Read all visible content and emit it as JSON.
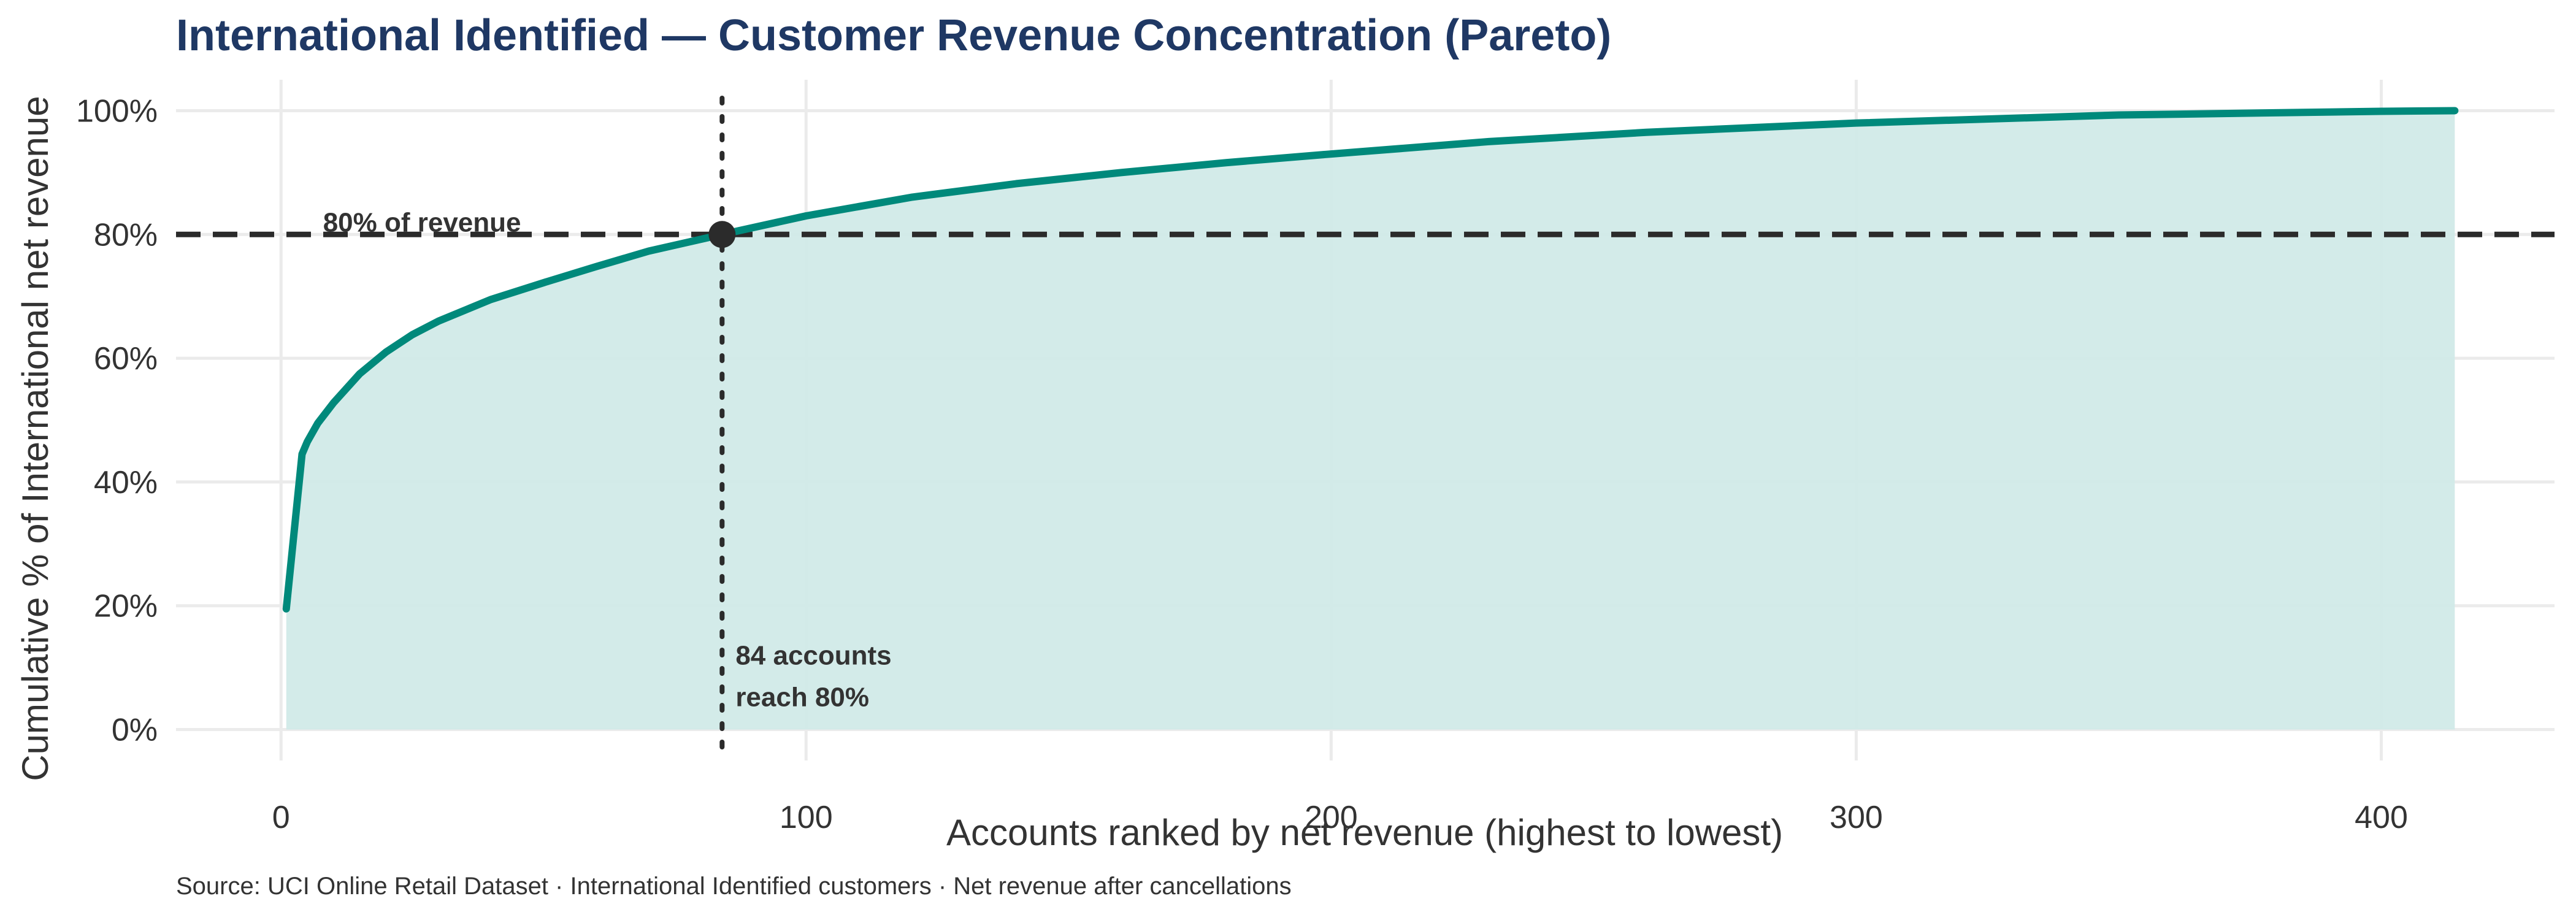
{
  "chart_data": {
    "type": "area",
    "title": "International Identified — Customer Revenue Concentration (Pareto)",
    "xlabel": "Accounts ranked by net revenue (highest to lowest)",
    "ylabel": "Cumulative % of International net revenue",
    "caption": "Source: UCI Online Retail Dataset · International Identified customers · Net revenue after cancellations",
    "xlim": [
      -20,
      433
    ],
    "ylim": [
      -5,
      105
    ],
    "x_ticks": [
      0,
      100,
      200,
      300,
      400
    ],
    "y_ticks": [
      0,
      20,
      40,
      60,
      80,
      100
    ],
    "y_tick_format": "{v}%",
    "grid": true,
    "series": [
      {
        "x": [
          1,
          4,
          5,
          7,
          10,
          15,
          20,
          25,
          30,
          40,
          50,
          60,
          70,
          84,
          100,
          120,
          140,
          160,
          180,
          200,
          230,
          260,
          300,
          350,
          400,
          414
        ],
        "y": [
          19.5,
          44.5,
          46.5,
          49.5,
          52.8,
          57.5,
          61,
          63.8,
          66,
          69.5,
          72.2,
          74.8,
          77.3,
          80,
          83,
          86,
          88.2,
          90,
          91.6,
          93,
          95,
          96.5,
          98,
          99.3,
          99.9,
          100
        ]
      }
    ],
    "threshold": {
      "y": 80,
      "label": "80% of revenue"
    },
    "marker": {
      "x": 84,
      "y": 80,
      "label_lines": [
        "84 accounts",
        "reach 80%"
      ]
    },
    "colors": {
      "line": "#00897B",
      "fill": "#D1EAE8",
      "title": "#1F3864",
      "reference": "#2B2B2B",
      "grid": "#EBEBEB",
      "text": "#333333"
    }
  }
}
